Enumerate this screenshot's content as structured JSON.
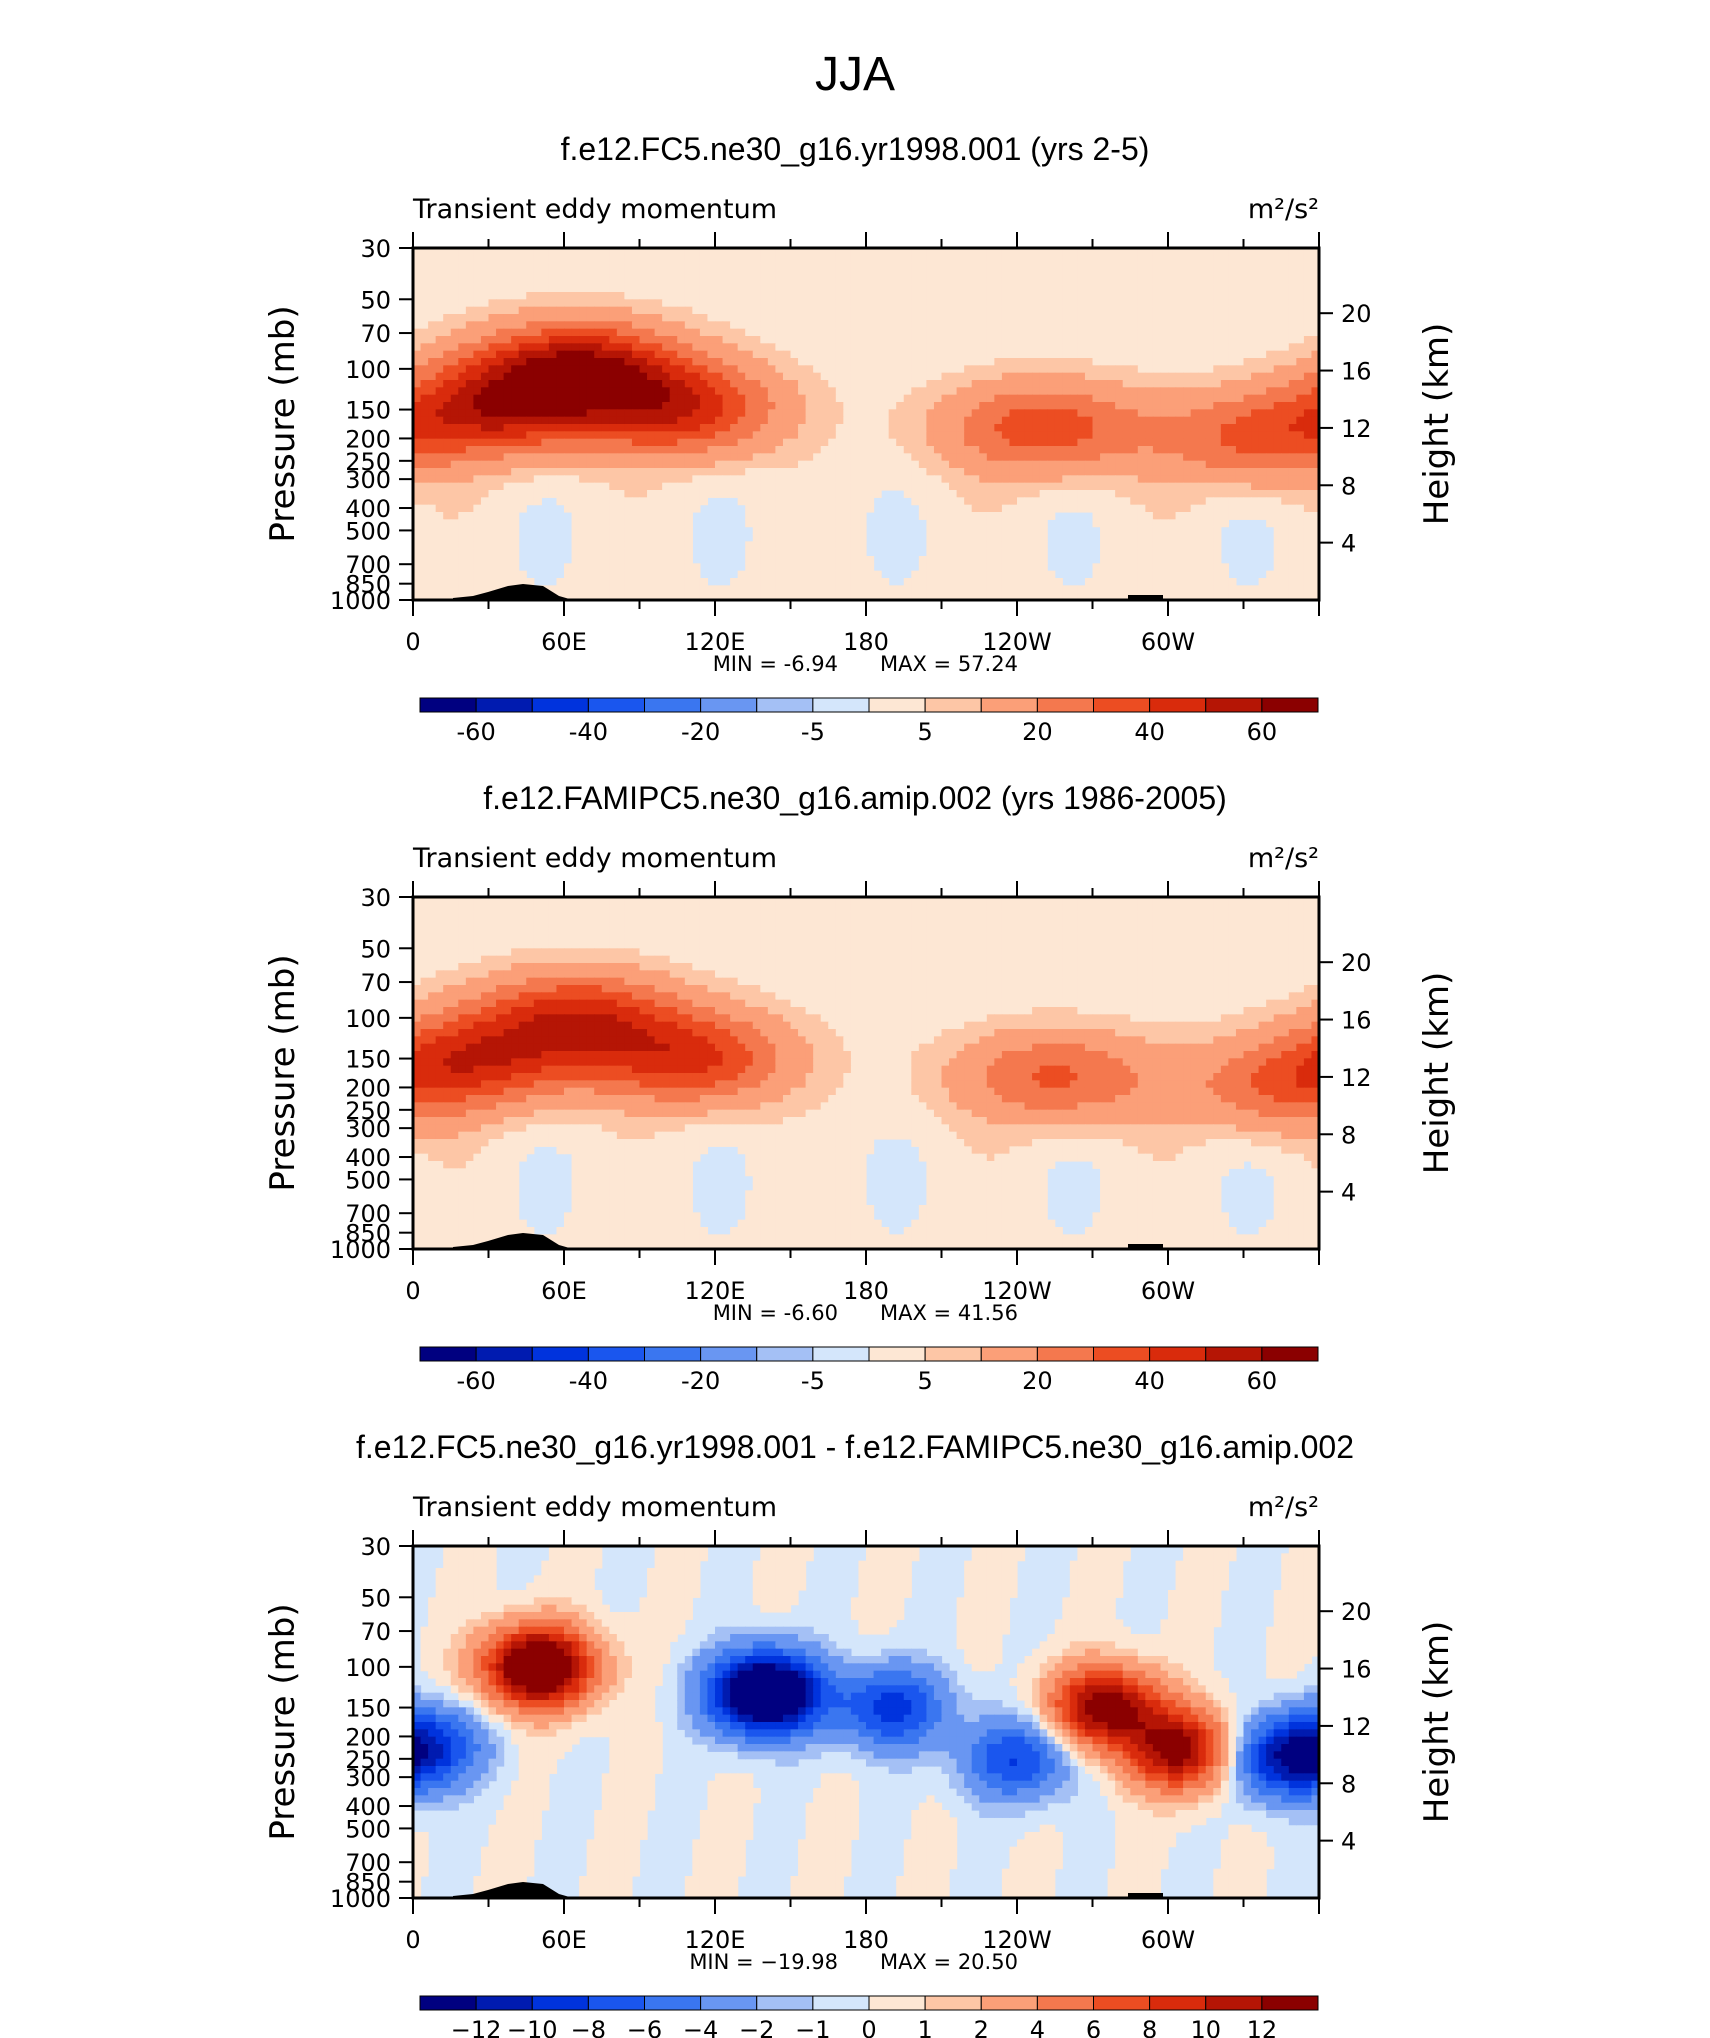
{
  "figure_title": "JJA",
  "colors": {
    "bg_light": "#d4e6fb",
    "frame": "#000000",
    "full_palette": [
      "#000080",
      "#001bb0",
      "#0033dd",
      "#1a56ee",
      "#3a76f0",
      "#6996f2",
      "#a4c0f5",
      "#d4e6fb",
      "#fde7d4",
      "#fdc6a6",
      "#fb9f78",
      "#f4784e",
      "#ec4d22",
      "#d92b0c",
      "#b51505",
      "#8b0000"
    ],
    "diff_palette": [
      "#000080",
      "#001bb0",
      "#0033dd",
      "#1a56ee",
      "#3a76f0",
      "#6996f2",
      "#a4c0f5",
      "#d4e6fb",
      "#fde7d4",
      "#fdc6a6",
      "#fb9f78",
      "#f4784e",
      "#ec4d22",
      "#d92b0c",
      "#b51505",
      "#8b0000"
    ]
  },
  "chart_data": [
    {
      "type": "contour",
      "title": "f.e12.FC5.ne30_g16.yr1998.001 (yrs 2-5)",
      "left_label": "Transient  eddy  momentum",
      "units": "m²/s²",
      "ylabel": "Pressure  (mb)",
      "ylabel_right": "Height  (km)",
      "pressure_ticks": [
        "30",
        "50",
        "70",
        "100",
        "150",
        "200",
        "250",
        "300",
        "400",
        "500",
        "700",
        "850",
        "1000"
      ],
      "height_ticks": [
        "20",
        "16",
        "12",
        "8",
        "4"
      ],
      "lon_ticks": [
        "0",
        "60E",
        "120E",
        "180",
        "120W",
        "60W"
      ],
      "min_text": "MIN  =     -6.94",
      "max_text": "MAX  =     57.24",
      "min": -6.94,
      "max": 57.24,
      "colorbar_labels": [
        "-60",
        "-40",
        "-20",
        "-5",
        "5",
        "20",
        "40",
        "60"
      ],
      "jets": [
        {
          "lon": 30,
          "p": 150,
          "peak": 45
        },
        {
          "lon": 65,
          "p": 100,
          "peak": 57
        },
        {
          "lon": 105,
          "p": 150,
          "peak": 44
        },
        {
          "lon": 250,
          "p": 180,
          "peak": 35
        },
        {
          "lon": 335,
          "p": 200,
          "peak": 30
        }
      ]
    },
    {
      "type": "contour",
      "title": "f.e12.FAMIPC5.ne30_g16.amip.002 (yrs 1986-2005)",
      "left_label": "Transient  eddy  momentum",
      "units": "m²/s²",
      "ylabel": "Pressure  (mb)",
      "ylabel_right": "Height  (km)",
      "pressure_ticks": [
        "30",
        "50",
        "70",
        "100",
        "150",
        "200",
        "250",
        "300",
        "400",
        "500",
        "700",
        "850",
        "1000"
      ],
      "height_ticks": [
        "20",
        "16",
        "12",
        "8",
        "4"
      ],
      "lon_ticks": [
        "0",
        "60E",
        "120E",
        "180",
        "120W",
        "60W"
      ],
      "min_text": "MIN  =     -6.60",
      "max_text": "MAX  =     41.56",
      "min": -6.6,
      "max": 41.56,
      "colorbar_labels": [
        "-60",
        "-40",
        "-20",
        "-5",
        "5",
        "20",
        "40",
        "60"
      ],
      "jets": [
        {
          "lon": 25,
          "p": 150,
          "peak": 38
        },
        {
          "lon": 65,
          "p": 100,
          "peak": 41
        },
        {
          "lon": 110,
          "p": 150,
          "peak": 40
        },
        {
          "lon": 255,
          "p": 180,
          "peak": 30
        },
        {
          "lon": 345,
          "p": 200,
          "peak": 25
        }
      ]
    },
    {
      "type": "contour",
      "title": "f.e12.FC5.ne30_g16.yr1998.001 - f.e12.FAMIPC5.ne30_g16.amip.002",
      "left_label": "Transient  eddy  momentum",
      "units": "m²/s²",
      "ylabel": "Pressure  (mb)",
      "ylabel_right": "Height  (km)",
      "pressure_ticks": [
        "30",
        "50",
        "70",
        "100",
        "150",
        "200",
        "250",
        "300",
        "400",
        "500",
        "700",
        "850",
        "1000"
      ],
      "height_ticks": [
        "20",
        "16",
        "12",
        "8",
        "4"
      ],
      "lon_ticks": [
        "0",
        "60E",
        "120E",
        "180",
        "120W",
        "60W"
      ],
      "min_text": "MIN  =  −19.98",
      "max_text": "MAX  =     20.50",
      "min": -19.98,
      "max": 20.5,
      "colorbar_labels": [
        "−12",
        "−10",
        "−8",
        "−6",
        "−4",
        "−2",
        "−1",
        "0",
        "1",
        "2",
        "4",
        "6",
        "8",
        "10",
        "12"
      ],
      "anomalies": [
        {
          "lon": 50,
          "p": 100,
          "v": 18
        },
        {
          "lon": 140,
          "p": 130,
          "v": -20
        },
        {
          "lon": 190,
          "p": 150,
          "v": -9
        },
        {
          "lon": 240,
          "p": 250,
          "v": -8
        },
        {
          "lon": 275,
          "p": 150,
          "v": 14
        },
        {
          "lon": 305,
          "p": 230,
          "v": 13
        },
        {
          "lon": 345,
          "p": 250,
          "v": -10
        },
        {
          "lon": 5,
          "p": 220,
          "v": -9
        }
      ]
    }
  ]
}
